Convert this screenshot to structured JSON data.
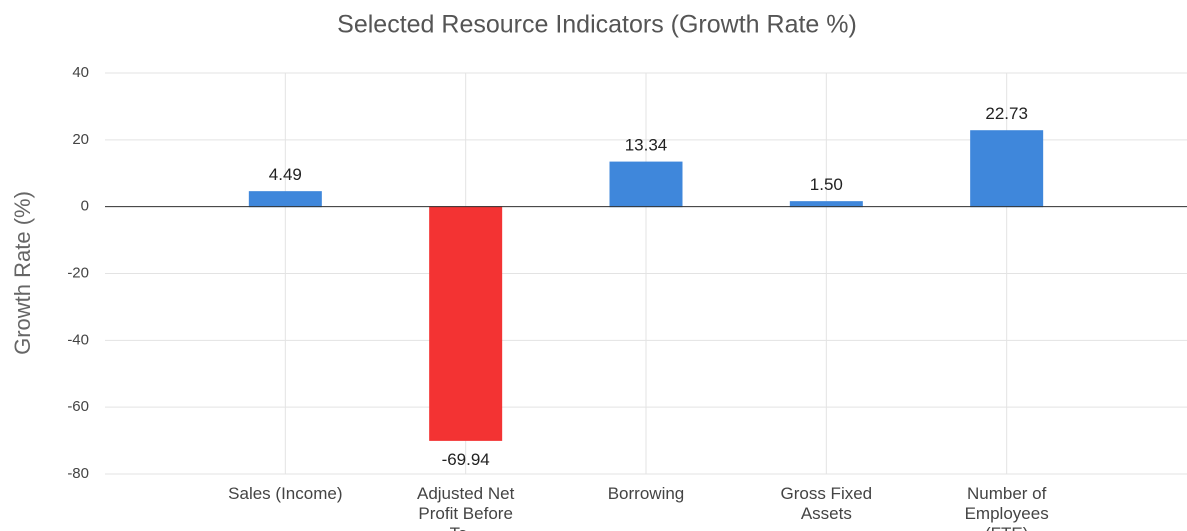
{
  "chart_data": {
    "type": "bar",
    "title": "Selected Resource Indicators (Growth Rate %)",
    "y_label": "Growth Rate (%)",
    "categories": [
      "Sales (Income)",
      "Adjusted Net Profit Before Ta...",
      "Borrowing",
      "Gross Fixed Assets",
      "Number of Employees (FTE)"
    ],
    "values": [
      4.49,
      -69.94,
      13.34,
      1.5,
      22.73
    ],
    "value_labels": [
      "4.49",
      "-69.94",
      "13.34",
      "1.50",
      "22.73"
    ],
    "colors": [
      "#3f87db",
      "#f33333",
      "#3f87db",
      "#3f87db",
      "#3f87db"
    ],
    "ylim": [
      -80,
      40
    ],
    "yticks": [
      -80,
      -60,
      -40,
      -20,
      0,
      20,
      40
    ],
    "grid": true
  }
}
